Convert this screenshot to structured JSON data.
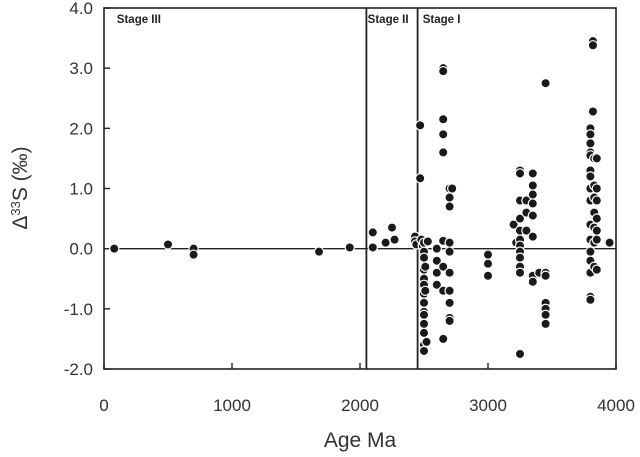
{
  "chart_data": {
    "type": "scatter",
    "xlabel": "Age Ma",
    "ylabel_parts": [
      "Δ",
      "33",
      "S (‰)"
    ],
    "xlim": [
      0,
      4000
    ],
    "ylim": [
      -2.0,
      4.0
    ],
    "x_ticks": [
      0,
      1000,
      2000,
      3000,
      4000
    ],
    "x_tick_labels": [
      "0",
      "1000",
      "2000",
      "3000",
      "4000"
    ],
    "y_ticks": [
      4.0,
      3.0,
      2.0,
      1.0,
      0.0,
      -1.0,
      -2.0
    ],
    "y_tick_labels": [
      "4.0",
      "3.0",
      "2.0",
      "1.0",
      "0.0",
      "-1.0",
      "-2.0"
    ],
    "grid": false,
    "zero_line": true,
    "boundaries": [
      2050,
      2450
    ],
    "stages": [
      {
        "label": "Stage III",
        "x": 100
      },
      {
        "label": "Stage II",
        "x": 2060
      },
      {
        "label": "Stage I",
        "x": 2490
      }
    ],
    "colors": {
      "points": "#1a1a1a",
      "axis": "#222222",
      "text": "#333333"
    },
    "points": [
      [
        80,
        0.0
      ],
      [
        500,
        0.07
      ],
      [
        700,
        0.0
      ],
      [
        700,
        -0.1
      ],
      [
        1680,
        -0.05
      ],
      [
        1920,
        0.02
      ],
      [
        2100,
        0.27
      ],
      [
        2100,
        0.02
      ],
      [
        2200,
        0.1
      ],
      [
        2250,
        0.35
      ],
      [
        2270,
        0.15
      ],
      [
        2430,
        0.2
      ],
      [
        2430,
        0.12
      ],
      [
        2440,
        0.07
      ],
      [
        2470,
        2.05
      ],
      [
        2470,
        1.17
      ],
      [
        2480,
        0.15
      ],
      [
        2490,
        0.05
      ],
      [
        2500,
        -0.05
      ],
      [
        2500,
        -0.15
      ],
      [
        2500,
        -0.35
      ],
      [
        2500,
        -0.5
      ],
      [
        2500,
        -0.6
      ],
      [
        2500,
        -0.75
      ],
      [
        2500,
        -0.9
      ],
      [
        2500,
        -1.05
      ],
      [
        2500,
        -1.1
      ],
      [
        2500,
        -1.25
      ],
      [
        2500,
        -1.4
      ],
      [
        2500,
        -1.6
      ],
      [
        2500,
        -1.7
      ],
      [
        2500,
        0.1
      ],
      [
        2510,
        -0.3
      ],
      [
        2510,
        -0.7
      ],
      [
        2520,
        -1.55
      ],
      [
        2530,
        0.12
      ],
      [
        2600,
        0.0
      ],
      [
        2600,
        -0.2
      ],
      [
        2600,
        -0.4
      ],
      [
        2600,
        -0.6
      ],
      [
        2650,
        3.0
      ],
      [
        2650,
        2.95
      ],
      [
        2650,
        2.15
      ],
      [
        2650,
        1.9
      ],
      [
        2650,
        1.6
      ],
      [
        2650,
        0.13
      ],
      [
        2650,
        -0.3
      ],
      [
        2650,
        -0.7
      ],
      [
        2650,
        -1.5
      ],
      [
        2700,
        1.0
      ],
      [
        2700,
        0.85
      ],
      [
        2700,
        0.7
      ],
      [
        2700,
        0.1
      ],
      [
        2700,
        -0.05
      ],
      [
        2700,
        -0.4
      ],
      [
        2700,
        -0.7
      ],
      [
        2700,
        -0.9
      ],
      [
        2700,
        -1.15
      ],
      [
        2700,
        -1.2
      ],
      [
        2720,
        1.0
      ],
      [
        3000,
        -0.1
      ],
      [
        3000,
        -0.25
      ],
      [
        3000,
        -0.45
      ],
      [
        3200,
        0.4
      ],
      [
        3220,
        0.1
      ],
      [
        3250,
        1.3
      ],
      [
        3250,
        1.25
      ],
      [
        3250,
        0.8
      ],
      [
        3250,
        0.5
      ],
      [
        3250,
        0.3
      ],
      [
        3250,
        0.15
      ],
      [
        3250,
        0.05
      ],
      [
        3250,
        -0.05
      ],
      [
        3250,
        -0.15
      ],
      [
        3250,
        -0.3
      ],
      [
        3250,
        -0.4
      ],
      [
        3250,
        -1.75
      ],
      [
        3300,
        0.8
      ],
      [
        3300,
        0.6
      ],
      [
        3300,
        0.3
      ],
      [
        3350,
        1.25
      ],
      [
        3350,
        1.05
      ],
      [
        3350,
        0.9
      ],
      [
        3350,
        0.75
      ],
      [
        3350,
        0.55
      ],
      [
        3350,
        0.2
      ],
      [
        3350,
        -0.45
      ],
      [
        3350,
        -0.55
      ],
      [
        3400,
        -0.4
      ],
      [
        3450,
        2.75
      ],
      [
        3450,
        -0.4
      ],
      [
        3450,
        -0.45
      ],
      [
        3450,
        -0.9
      ],
      [
        3450,
        -1.0
      ],
      [
        3450,
        -1.1
      ],
      [
        3450,
        -1.25
      ],
      [
        3800,
        2.0
      ],
      [
        3800,
        1.9
      ],
      [
        3800,
        1.75
      ],
      [
        3800,
        1.6
      ],
      [
        3800,
        1.55
      ],
      [
        3800,
        1.3
      ],
      [
        3800,
        1.2
      ],
      [
        3800,
        1.0
      ],
      [
        3800,
        0.8
      ],
      [
        3800,
        0.4
      ],
      [
        3800,
        0.15
      ],
      [
        3800,
        -0.05
      ],
      [
        3800,
        -0.2
      ],
      [
        3800,
        -0.4
      ],
      [
        3800,
        -0.8
      ],
      [
        3800,
        -0.85
      ],
      [
        3820,
        3.45
      ],
      [
        3820,
        3.38
      ],
      [
        3820,
        2.28
      ],
      [
        3830,
        1.5
      ],
      [
        3830,
        1.05
      ],
      [
        3830,
        0.85
      ],
      [
        3830,
        0.6
      ],
      [
        3830,
        0.35
      ],
      [
        3830,
        0.1
      ],
      [
        3830,
        -0.3
      ],
      [
        3850,
        1.5
      ],
      [
        3850,
        1.0
      ],
      [
        3850,
        0.8
      ],
      [
        3850,
        0.5
      ],
      [
        3850,
        0.3
      ],
      [
        3850,
        0.15
      ],
      [
        3850,
        -0.35
      ],
      [
        3950,
        0.1
      ]
    ]
  }
}
